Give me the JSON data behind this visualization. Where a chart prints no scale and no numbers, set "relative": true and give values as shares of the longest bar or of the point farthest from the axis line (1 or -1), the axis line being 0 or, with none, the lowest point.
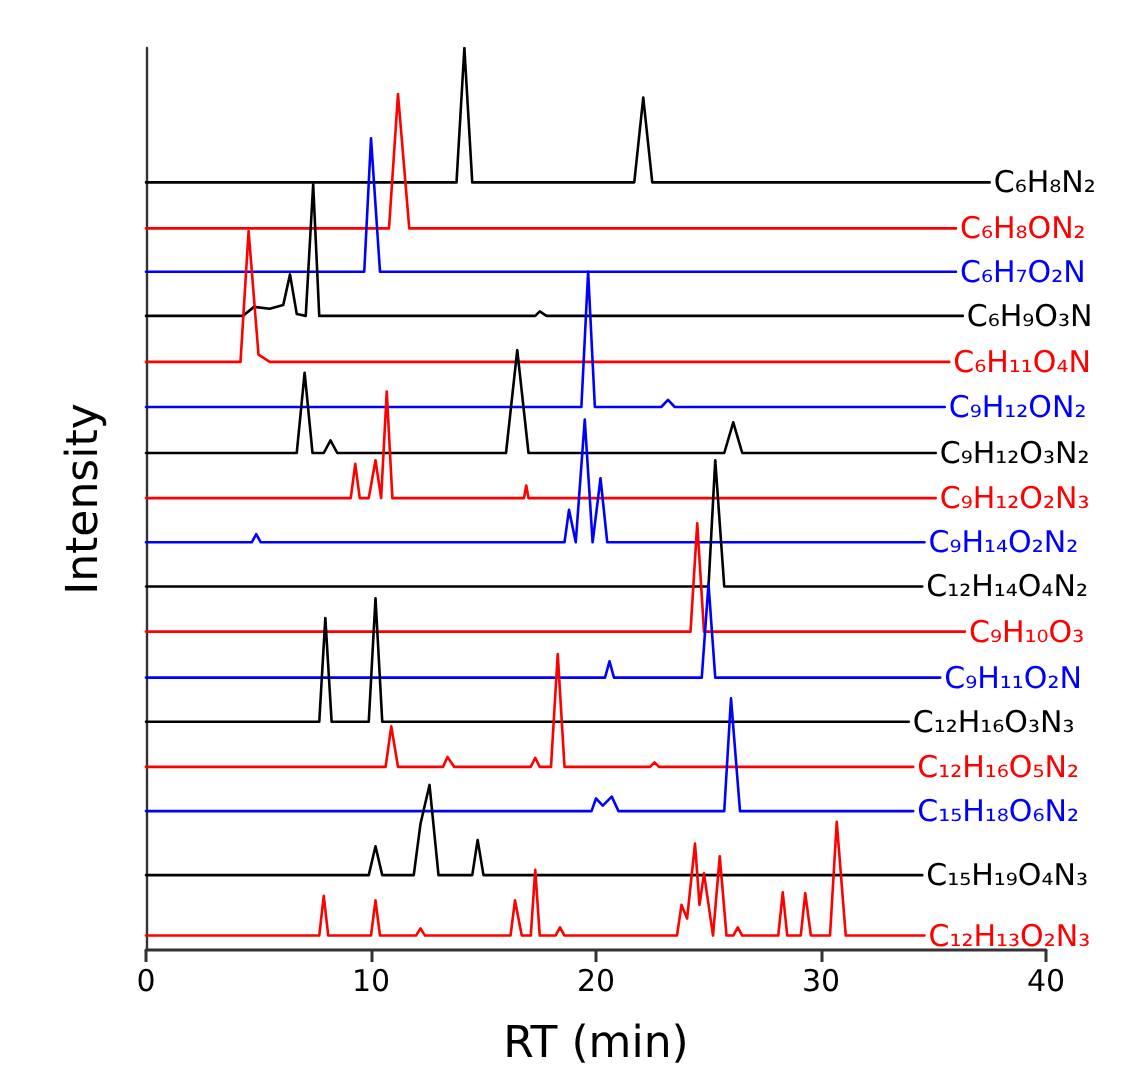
{
  "chart_data": {
    "type": "line",
    "relative": true,
    "xlabel": "RT (min)",
    "ylabel": "Intensity",
    "xlim": [
      0,
      40
    ],
    "xticks": [
      0,
      10,
      20,
      30,
      40
    ],
    "tick_labels": "x",
    "grid": false,
    "legend": false,
    "marker": "none",
    "line_style": "solid",
    "series": [
      {
        "name": "C₆H₈N₂",
        "color": "#000000",
        "x": [
          0,
          13.8,
          14.15,
          14.5,
          21.7,
          22.1,
          22.5,
          37.5
        ],
        "values": [
          0.851,
          0.851,
          1,
          0.851,
          0.851,
          0.945,
          0.851,
          0.851
        ]
      },
      {
        "name": "C₆H₈ON₂",
        "color": "#ff0000",
        "x": [
          0,
          10.8,
          11.2,
          11.7,
          36.0
        ],
        "values": [
          0.8,
          0.8,
          0.949,
          0.8,
          0.8
        ]
      },
      {
        "name": "C₆H₇O₂N",
        "color": "#0000ff",
        "x": [
          0,
          9.7,
          10.0,
          10.4,
          36.0
        ],
        "values": [
          0.752,
          0.752,
          0.9,
          0.752,
          0.752
        ]
      },
      {
        "name": "C₆H₉O₃N",
        "color": "#000000",
        "x": [
          0,
          4.3,
          4.8,
          5.5,
          6.1,
          6.4,
          6.7,
          7.1,
          7.43,
          7.7,
          17.3,
          17.5,
          17.8,
          36.3
        ],
        "values": [
          0.703,
          0.703,
          0.713,
          0.711,
          0.715,
          0.749,
          0.705,
          0.703,
          0.849,
          0.703,
          0.703,
          0.708,
          0.703,
          0.703
        ]
      },
      {
        "name": "C₆H₁₁O₄N",
        "color": "#ff0000",
        "x": [
          0,
          4.2,
          4.56,
          5.0,
          5.5,
          35.7
        ],
        "values": [
          0.652,
          0.652,
          0.797,
          0.66,
          0.652,
          0.652
        ]
      },
      {
        "name": "C₉H₁₂ON₂",
        "color": "#0000ff",
        "x": [
          0,
          19.35,
          19.65,
          19.95,
          22.9,
          23.2,
          23.5,
          35.5
        ],
        "values": [
          0.602,
          0.602,
          0.752,
          0.602,
          0.602,
          0.61,
          0.602,
          0.602
        ]
      },
      {
        "name": "C₉H₁₂O₃N₂",
        "color": "#000000",
        "x": [
          0,
          6.7,
          7.05,
          7.4,
          7.9,
          8.2,
          8.5,
          16.0,
          16.5,
          17.0,
          25.7,
          26.1,
          26.5,
          35.1
        ],
        "values": [
          0.551,
          0.551,
          0.64,
          0.551,
          0.551,
          0.565,
          0.551,
          0.551,
          0.665,
          0.551,
          0.551,
          0.585,
          0.551,
          0.551
        ]
      },
      {
        "name": "C₉H₁₂O₂N₃",
        "color": "#ff0000",
        "x": [
          0,
          9.1,
          9.3,
          9.5,
          9.9,
          10.2,
          10.45,
          10.7,
          10.95,
          16.8,
          16.9,
          17.0,
          35.1
        ],
        "values": [
          0.501,
          0.501,
          0.539,
          0.501,
          0.501,
          0.543,
          0.501,
          0.619,
          0.501,
          0.501,
          0.515,
          0.501,
          0.501
        ]
      },
      {
        "name": "C₉H₁₄O₂N₂",
        "color": "#0000ff",
        "x": [
          0,
          4.7,
          4.9,
          5.1,
          18.6,
          18.8,
          19.1,
          19.5,
          19.85,
          20.2,
          20.5,
          34.6
        ],
        "values": [
          0.452,
          0.452,
          0.461,
          0.452,
          0.452,
          0.488,
          0.452,
          0.588,
          0.452,
          0.523,
          0.452,
          0.452
        ]
      },
      {
        "name": "C₁₂H₁₄O₄N₂",
        "color": "#000000",
        "x": [
          0,
          25.0,
          25.3,
          25.7,
          34.5
        ],
        "values": [
          0.403,
          0.403,
          0.543,
          0.403,
          0.403
        ]
      },
      {
        "name": "C₉H₁₀O₃",
        "color": "#ff0000",
        "x": [
          0,
          24.2,
          24.5,
          24.8,
          36.4
        ],
        "values": [
          0.353,
          0.353,
          0.473,
          0.353,
          0.353
        ]
      },
      {
        "name": "C₉H₁₁O₂N",
        "color": "#0000ff",
        "x": [
          0,
          20.4,
          20.6,
          20.8,
          24.7,
          25.0,
          25.3,
          35.3
        ],
        "values": [
          0.302,
          0.302,
          0.32,
          0.302,
          0.302,
          0.406,
          0.302,
          0.302
        ]
      },
      {
        "name": "C₁₂H₁₆O₃N₃",
        "color": "#000000",
        "x": [
          0,
          7.7,
          7.97,
          8.25,
          9.9,
          10.2,
          10.5,
          33.9
        ],
        "values": [
          0.253,
          0.253,
          0.368,
          0.253,
          0.253,
          0.39,
          0.253,
          0.253
        ]
      },
      {
        "name": "C₁₂H₁₆O₅N₂",
        "color": "#ff0000",
        "x": [
          0,
          10.65,
          10.9,
          11.2,
          13.2,
          13.4,
          13.7,
          17.1,
          17.3,
          17.5,
          18.0,
          18.3,
          18.6,
          22.4,
          22.6,
          22.8,
          34.1
        ],
        "values": [
          0.203,
          0.203,
          0.248,
          0.203,
          0.203,
          0.214,
          0.203,
          0.203,
          0.213,
          0.203,
          0.203,
          0.328,
          0.203,
          0.203,
          0.208,
          0.203,
          0.203
        ]
      },
      {
        "name": "C₁₅H₁₈O₆N₂",
        "color": "#0000ff",
        "x": [
          0,
          19.8,
          20.0,
          20.3,
          20.7,
          21.0,
          25.7,
          26.0,
          26.4,
          34.1
        ],
        "values": [
          0.154,
          0.154,
          0.168,
          0.16,
          0.17,
          0.154,
          0.154,
          0.279,
          0.154,
          0.154
        ]
      },
      {
        "name": "C₁₅H₁₉O₄N₃",
        "color": "#000000",
        "x": [
          0,
          9.9,
          10.2,
          10.5,
          11.9,
          12.2,
          12.6,
          13.0,
          14.5,
          14.74,
          15.0,
          34.5
        ],
        "values": [
          0.083,
          0.083,
          0.115,
          0.083,
          0.083,
          0.14,
          0.183,
          0.083,
          0.083,
          0.122,
          0.083,
          0.083
        ]
      },
      {
        "name": "C₁₂H₁₃O₂N₃",
        "color": "#ff0000",
        "x": [
          0,
          7.7,
          7.9,
          8.1,
          10.0,
          10.2,
          10.4,
          12.0,
          12.2,
          12.4,
          16.2,
          16.4,
          16.7,
          17.1,
          17.3,
          17.5,
          18.2,
          18.4,
          18.6,
          23.6,
          23.8,
          24.05,
          24.4,
          24.6,
          24.8,
          25.2,
          25.5,
          25.8,
          26.1,
          26.3,
          26.5,
          28.1,
          28.3,
          28.5,
          29.1,
          29.3,
          29.55,
          30.4,
          30.7,
          31.1,
          34.6
        ],
        "values": [
          0.016,
          0.016,
          0.06,
          0.016,
          0.016,
          0.055,
          0.016,
          0.016,
          0.024,
          0.016,
          0.016,
          0.055,
          0.016,
          0.016,
          0.089,
          0.016,
          0.016,
          0.025,
          0.016,
          0.016,
          0.05,
          0.035,
          0.118,
          0.05,
          0.085,
          0.016,
          0.104,
          0.016,
          0.016,
          0.025,
          0.016,
          0.016,
          0.064,
          0.016,
          0.016,
          0.063,
          0.016,
          0.016,
          0.142,
          0.016,
          0.016
        ]
      }
    ]
  }
}
